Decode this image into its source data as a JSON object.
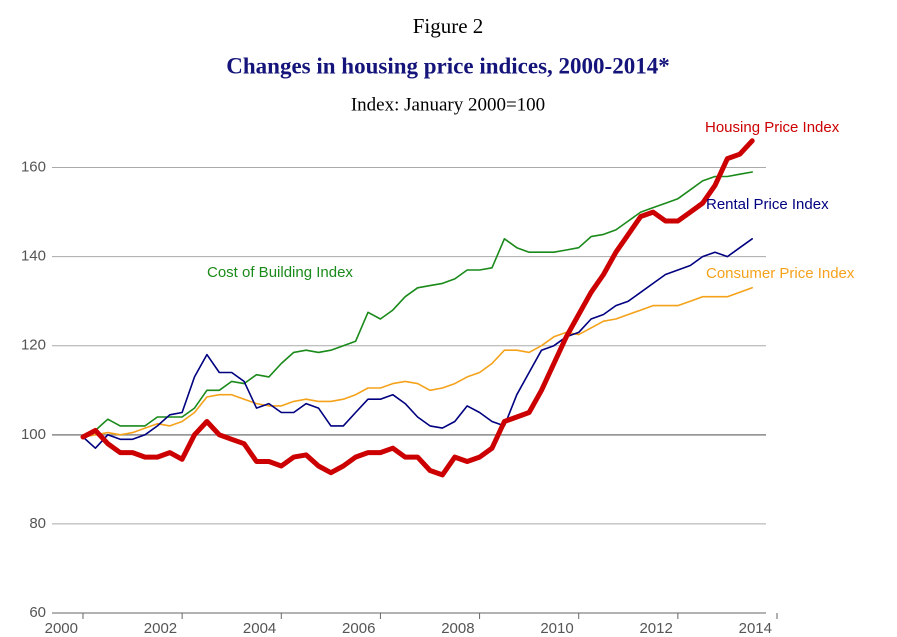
{
  "chart_data": {
    "type": "line",
    "figure_label": "Figure 2",
    "title": "Changes in housing price indices, 2000-2014*",
    "subtitle": "Index: January 2000=100",
    "x": [
      2000,
      2000.25,
      2000.5,
      2000.75,
      2001,
      2001.25,
      2001.5,
      2001.75,
      2002,
      2002.25,
      2002.5,
      2002.75,
      2003,
      2003.25,
      2003.5,
      2003.75,
      2004,
      2004.25,
      2004.5,
      2004.75,
      2005,
      2005.25,
      2005.5,
      2005.75,
      2006,
      2006.25,
      2006.5,
      2006.75,
      2007,
      2007.25,
      2007.5,
      2007.75,
      2008,
      2008.25,
      2008.5,
      2008.75,
      2009,
      2009.25,
      2009.5,
      2009.75,
      2010,
      2010.25,
      2010.5,
      2010.75,
      2011,
      2011.25,
      2011.5,
      2011.75,
      2012,
      2012.25,
      2012.5,
      2012.75,
      2013,
      2013.25,
      2013.5
    ],
    "series": [
      {
        "name": "Cost of Building Index",
        "color": "#1a8a1a",
        "values": [
          99.5,
          101,
          103.5,
          102,
          102,
          102,
          104,
          104,
          104,
          106,
          110,
          110,
          112,
          111.5,
          113.5,
          113,
          116,
          118.5,
          119,
          118.5,
          119,
          120,
          121,
          127.5,
          126,
          128,
          131,
          133,
          133.5,
          134,
          135,
          137,
          137,
          137.5,
          144,
          142,
          141,
          141,
          141,
          141.5,
          142,
          144.5,
          145,
          146,
          148,
          150,
          151,
          152,
          153,
          155,
          157,
          158,
          158,
          158.5,
          159
        ]
      },
      {
        "name": "Consumer Price Index",
        "color": "#f5a21b",
        "values": [
          99.5,
          100,
          100.5,
          100,
          100.5,
          101.5,
          102.5,
          102,
          103,
          105,
          108.5,
          109,
          109,
          108,
          107,
          106.5,
          106.5,
          107.5,
          108,
          107.5,
          107.5,
          108,
          109,
          110.5,
          110.5,
          111.5,
          112,
          111.5,
          110,
          110.5,
          111.5,
          113,
          114,
          116,
          119,
          119,
          118.5,
          120,
          122,
          123,
          122.5,
          124,
          125.5,
          126,
          127,
          128,
          129,
          129,
          129,
          130,
          131,
          131,
          131,
          132,
          133
        ]
      },
      {
        "name": "Rental Price Index",
        "color": "#000080",
        "values": [
          99.5,
          97,
          100,
          99,
          99,
          100,
          102,
          104.5,
          105,
          113,
          118,
          114,
          114,
          112,
          106,
          107,
          105,
          105,
          107,
          106,
          102,
          102,
          105,
          108,
          108,
          109,
          107,
          104,
          102,
          101.5,
          103,
          106.5,
          105,
          103,
          102,
          109,
          114,
          119,
          120,
          122,
          123,
          126,
          127,
          129,
          130,
          132,
          134,
          136,
          137,
          138,
          140,
          141,
          140,
          142,
          144
        ]
      },
      {
        "name": "Housing Price Index",
        "color": "#cc0000",
        "values": [
          99.5,
          101,
          98,
          96,
          96,
          95,
          95,
          96,
          94.5,
          100,
          103,
          100,
          99,
          98,
          94,
          94,
          93,
          95,
          95.5,
          93,
          91.5,
          93,
          95,
          96,
          96,
          97,
          95,
          95,
          92,
          91,
          95,
          94,
          95,
          97,
          103,
          104,
          105,
          110,
          116,
          122,
          127,
          132,
          136,
          141,
          145,
          149,
          150,
          148,
          148,
          150,
          152,
          156,
          162,
          163,
          166
        ]
      }
    ],
    "xlim": [
      2000,
      2014
    ],
    "xticks": [
      2000,
      2002,
      2004,
      2006,
      2008,
      2010,
      2012,
      2014
    ],
    "ylim": [
      60,
      170
    ],
    "yticks": [
      60,
      80,
      100,
      120,
      140,
      160
    ],
    "grid": true
  }
}
